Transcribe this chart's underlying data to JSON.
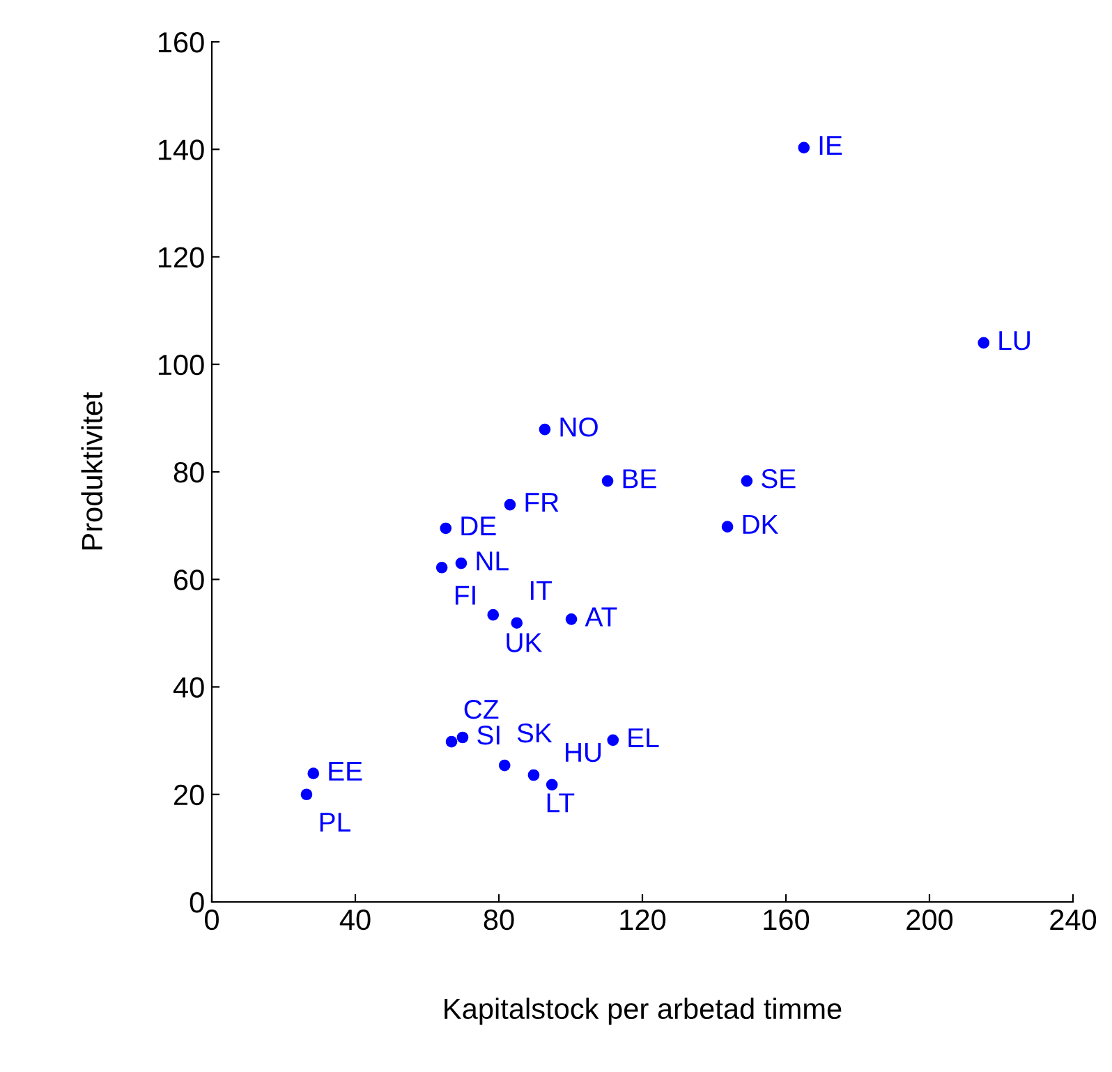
{
  "chart_data": {
    "type": "scatter",
    "xlabel": "Kapitalstock per arbetad timme",
    "ylabel": "Produktivitet",
    "x": [
      165.0,
      215.1,
      92.8,
      110.3,
      149.1,
      143.7,
      83.1,
      65.2,
      64.1,
      69.5,
      78.4,
      85.0,
      100.2,
      69.9,
      66.8,
      111.8,
      28.3,
      26.4,
      81.6,
      89.7,
      94.8
    ],
    "values": [
      140.3,
      104.0,
      87.9,
      78.3,
      78.3,
      69.8,
      73.9,
      69.5,
      62.2,
      63.0,
      53.4,
      51.9,
      52.6,
      30.6,
      29.8,
      30.1,
      23.9,
      20.0,
      25.4,
      23.6,
      21.8
    ],
    "value_labels": [
      "IE",
      "LU",
      "NO",
      "BE",
      "SE",
      "DK",
      "FR",
      "DE",
      "FI",
      "NL",
      "UK",
      "IT",
      "AT",
      "SI",
      "CZ",
      "EL",
      "EE",
      "PL",
      "SK",
      "LT",
      "HU"
    ],
    "color": "#0000ff",
    "marker": "circle",
    "xlim": [
      0,
      240
    ],
    "xticks": [
      0,
      40,
      80,
      120,
      160,
      200,
      240
    ],
    "ylim": [
      0,
      160
    ],
    "yticks": [
      0,
      20,
      40,
      60,
      80,
      100,
      120,
      140,
      160
    ]
  }
}
